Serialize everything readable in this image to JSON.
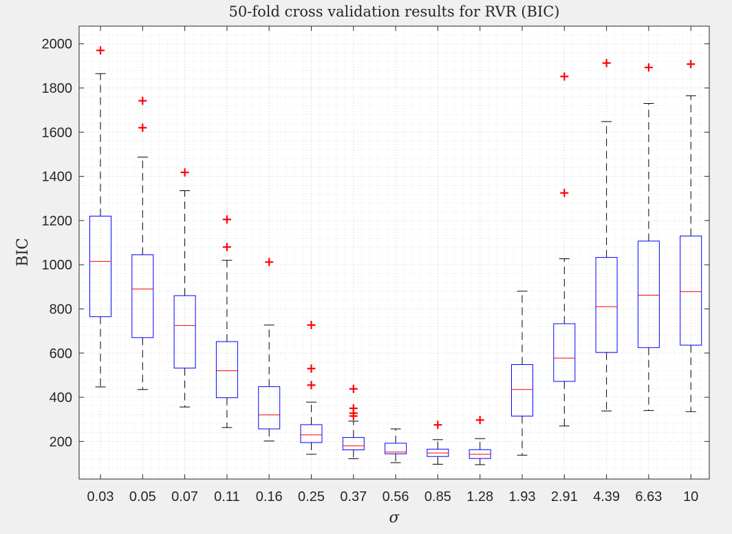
{
  "chart_data": {
    "type": "box",
    "title": "50-fold cross validation results for RVR (BIC)",
    "xlabel": "σ",
    "ylabel": "BIC",
    "ylim": [
      30,
      2080
    ],
    "yticks": [
      200,
      400,
      600,
      800,
      1000,
      1200,
      1400,
      1600,
      1800,
      2000
    ],
    "grid": "major-and-minor-dotted",
    "colors": {
      "box": "#0000ff",
      "median": "#ff0000",
      "whisker": "#000000",
      "outlier": "#ff0000",
      "axes_bg": "#ffffff",
      "figure_bg": "#f0f0f0"
    },
    "categories": [
      "0.03",
      "0.05",
      "0.07",
      "0.11",
      "0.16",
      "0.25",
      "0.37",
      "0.56",
      "0.85",
      "1.28",
      "1.93",
      "2.91",
      "4.39",
      "6.63",
      "10"
    ],
    "boxes": [
      {
        "q1": 765,
        "median": 1015,
        "q3": 1220,
        "whisker_low": 447,
        "whisker_high": 1865,
        "outliers": [
          1970
        ]
      },
      {
        "q1": 670,
        "median": 890,
        "q3": 1045,
        "whisker_low": 435,
        "whisker_high": 1487,
        "outliers": [
          1620,
          1742
        ]
      },
      {
        "q1": 532,
        "median": 725,
        "q3": 860,
        "whisker_low": 356,
        "whisker_high": 1335,
        "outliers": [
          1418
        ]
      },
      {
        "q1": 398,
        "median": 520,
        "q3": 652,
        "whisker_low": 263,
        "whisker_high": 1020,
        "outliers": [
          1080,
          1205
        ]
      },
      {
        "q1": 257,
        "median": 320,
        "q3": 448,
        "whisker_low": 202,
        "whisker_high": 727,
        "outliers": [
          1012
        ]
      },
      {
        "q1": 195,
        "median": 230,
        "q3": 276,
        "whisker_low": 142,
        "whisker_high": 378,
        "outliers": [
          455,
          530,
          727
        ]
      },
      {
        "q1": 162,
        "median": 180,
        "q3": 218,
        "whisker_low": 122,
        "whisker_high": 292,
        "outliers": [
          315,
          328,
          350,
          438
        ]
      },
      {
        "q1": 144,
        "median": 152,
        "q3": 192,
        "whisker_low": 104,
        "whisker_high": 257,
        "outliers": []
      },
      {
        "q1": 132,
        "median": 148,
        "q3": 165,
        "whisker_low": 97,
        "whisker_high": 208,
        "outliers": [
          275
        ]
      },
      {
        "q1": 123,
        "median": 142,
        "q3": 163,
        "whisker_low": 95,
        "whisker_high": 213,
        "outliers": [
          297
        ]
      },
      {
        "q1": 315,
        "median": 435,
        "q3": 548,
        "whisker_low": 138,
        "whisker_high": 880,
        "outliers": []
      },
      {
        "q1": 472,
        "median": 577,
        "q3": 733,
        "whisker_low": 270,
        "whisker_high": 1027,
        "outliers": [
          1325,
          1852
        ]
      },
      {
        "q1": 603,
        "median": 810,
        "q3": 1033,
        "whisker_low": 338,
        "whisker_high": 1648,
        "outliers": [
          1913
        ]
      },
      {
        "q1": 625,
        "median": 862,
        "q3": 1107,
        "whisker_low": 340,
        "whisker_high": 1730,
        "outliers": [
          1893
        ]
      },
      {
        "q1": 636,
        "median": 878,
        "q3": 1130,
        "whisker_low": 335,
        "whisker_high": 1765,
        "outliers": [
          1908
        ]
      }
    ]
  }
}
